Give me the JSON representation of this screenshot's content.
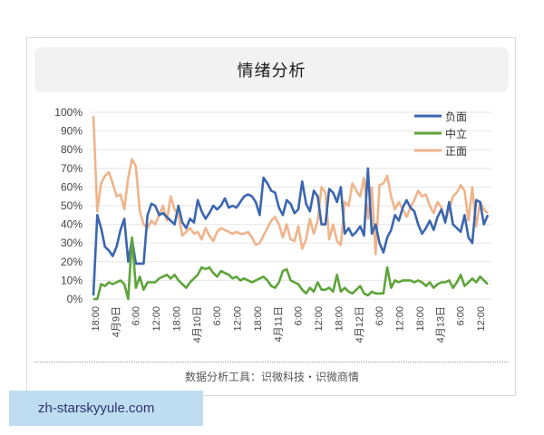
{
  "card": {
    "title": "情绪分析",
    "footer": "数据分析工具：识微科技・识微商情"
  },
  "watermark": {
    "text": "zh-starskyyule.com"
  },
  "colors": {
    "negative": "#3a66b0",
    "neutral": "#5ea43a",
    "positive": "#f0b48a",
    "grid": "#e6e6e6"
  },
  "chart_data": {
    "type": "line",
    "title": "情绪分析",
    "xlabel": "",
    "ylabel": "",
    "ylim": [
      0,
      100
    ],
    "y_ticks": [
      "0%",
      "10%",
      "20%",
      "30%",
      "40%",
      "50%",
      "60%",
      "70%",
      "80%",
      "90%",
      "100%"
    ],
    "x_tick_labels": [
      "18:00",
      "4月9日",
      "6:00",
      "12:00",
      "18:00",
      "4月10日",
      "6:00",
      "12:00",
      "18:00",
      "4月11日",
      "6:00",
      "12:00",
      "18:00",
      "4月12日",
      "6:00",
      "12:00",
      "18:00",
      "4月13日",
      "6:00",
      "12:00"
    ],
    "legend": [
      "负面",
      "中立",
      "正面"
    ],
    "legend_position": "top-right",
    "grid": true,
    "series": [
      {
        "name": "负面",
        "color": "#3a66b0",
        "values": [
          2,
          45,
          38,
          28,
          26,
          23,
          28,
          37,
          43,
          20,
          32,
          19,
          19,
          19,
          45,
          51,
          50,
          45,
          46,
          44,
          42,
          40,
          50,
          41,
          38,
          43,
          41,
          53,
          47,
          43,
          46,
          50,
          48,
          50,
          54,
          49,
          50,
          49,
          52,
          55,
          56,
          55,
          52,
          45,
          65,
          62,
          58,
          57,
          49,
          45,
          53,
          51,
          46,
          48,
          63,
          51,
          47,
          58,
          55,
          40,
          40,
          59,
          57,
          52,
          60,
          35,
          38,
          34,
          36,
          39,
          34,
          70,
          35,
          40,
          30,
          25,
          33,
          37,
          45,
          42,
          49,
          53,
          49,
          47,
          40,
          35,
          38,
          42,
          37,
          44,
          48,
          41,
          52,
          40,
          38,
          36,
          45,
          33,
          30,
          53,
          52,
          40,
          45
        ]
      },
      {
        "name": "中立",
        "color": "#5ea43a",
        "values": [
          0,
          0,
          8,
          7,
          9,
          8,
          9,
          10,
          8,
          0,
          33,
          6,
          12,
          5,
          9,
          9,
          9,
          11,
          12,
          13,
          11,
          13,
          10,
          8,
          6,
          9,
          11,
          13,
          17,
          16,
          17,
          14,
          12,
          15,
          14,
          13,
          11,
          12,
          10,
          11,
          10,
          9,
          10,
          11,
          12,
          10,
          7,
          6,
          9,
          15,
          16,
          10,
          9,
          8,
          5,
          3,
          6,
          4,
          9,
          5,
          5,
          6,
          4,
          13,
          4,
          6,
          4,
          3,
          5,
          7,
          3,
          2,
          4,
          3,
          3,
          3,
          17,
          6,
          10,
          9,
          10,
          10,
          10,
          9,
          10,
          9,
          7,
          9,
          6,
          8,
          9,
          9,
          10,
          6,
          9,
          13,
          7,
          9,
          11,
          9,
          12,
          10,
          8
        ]
      },
      {
        "name": "正面",
        "color": "#f0b48a",
        "values": [
          98,
          47,
          62,
          66,
          68,
          62,
          55,
          56,
          48,
          65,
          75,
          71,
          47,
          40,
          38,
          42,
          40,
          45,
          50,
          42,
          55,
          48,
          45,
          34,
          36,
          38,
          35,
          36,
          32,
          38,
          34,
          31,
          36,
          38,
          37,
          36,
          35,
          36,
          35,
          35,
          36,
          33,
          29,
          30,
          34,
          38,
          42,
          44,
          40,
          33,
          40,
          32,
          31,
          39,
          27,
          32,
          43,
          35,
          42,
          60,
          57,
          32,
          40,
          31,
          29,
          52,
          50,
          62,
          58,
          55,
          65,
          43,
          60,
          24,
          61,
          62,
          66,
          55,
          48,
          52,
          48,
          44,
          49,
          53,
          58,
          55,
          56,
          50,
          46,
          52,
          49,
          42,
          48,
          55,
          57,
          61,
          58,
          42,
          60,
          39,
          52,
          48,
          46
        ]
      }
    ]
  }
}
